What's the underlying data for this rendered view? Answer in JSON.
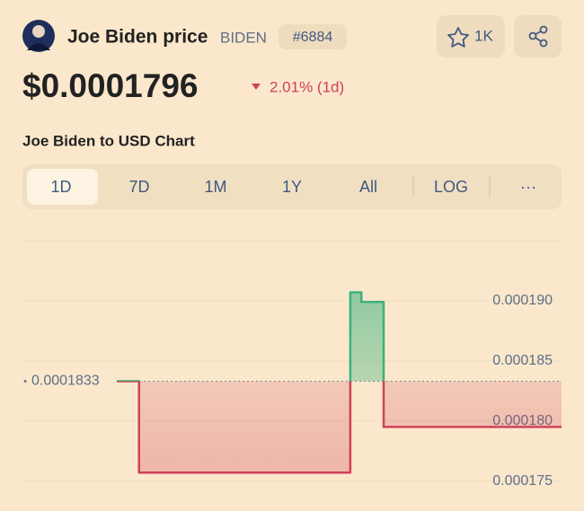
{
  "header": {
    "name": "Joe Biden price",
    "symbol": "BIDEN",
    "rank": "#6884",
    "watchlist": "1K"
  },
  "price": {
    "value": "$0.0001796",
    "change": "2.01% (1d)"
  },
  "chart_title": "Joe Biden to USD Chart",
  "tabs": [
    "1D",
    "7D",
    "1M",
    "1Y",
    "All",
    "LOG",
    "···"
  ],
  "chart_data": {
    "type": "line",
    "values": [
      0.0001833,
      0.0001833,
      0.0001757,
      0.0001757,
      0.0001757,
      0.0001757,
      0.0001757,
      0.0001757,
      0.0001757,
      0.0001757,
      0.0001757,
      0.0001757,
      0.0001757,
      0.0001757,
      0.0001757,
      0.0001757,
      0.0001757,
      0.0001757,
      0.0001757,
      0.0001757,
      0.0001757,
      0.0001907,
      0.0001899,
      0.0001899,
      0.0001795,
      0.0001795,
      0.0001795,
      0.0001795,
      0.0001795,
      0.0001795,
      0.0001795,
      0.0001795,
      0.0001795,
      0.0001795,
      0.0001795,
      0.0001795,
      0.0001795,
      0.0001795,
      0.0001795,
      0.0001795
    ],
    "reference": 0.0001833,
    "up_color": "#3bb27c",
    "down_color": "#cf4159",
    "ylim": [
      0.0001725,
      0.000195
    ],
    "yticks": [
      0.000175,
      {
        "value": 0.00018,
        "label": "0.000180"
      },
      0.000185,
      {
        "value": 0.00019,
        "label": "0.000190"
      }
    ],
    "grid": true
  }
}
